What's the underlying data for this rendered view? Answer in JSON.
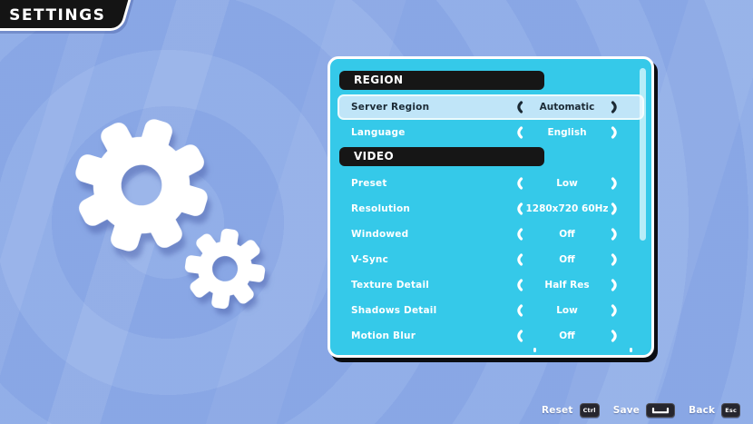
{
  "title": "SETTINGS",
  "colors": {
    "background": "#8caae7",
    "panel": "#35c9e9",
    "section_header_bg": "#161616",
    "selected_row_bg": "#c0e5f8",
    "selected_row_text": "#1b2a35",
    "row_text": "#ffffff",
    "banner_bg": "#141414",
    "key_badge_bg": "#26262e"
  },
  "icons": {
    "gear_big": "gear-icon",
    "gear_small": "small-gear-icon",
    "left_arrow": "left-arrow-icon (curved bracket ❨)",
    "right_arrow": "right-arrow-icon (curved bracket ❩)",
    "save_key": "spacebar-key-icon"
  },
  "panel": {
    "sections": [
      {
        "header": "REGION",
        "rows": [
          {
            "label": "Server Region",
            "value": "Automatic",
            "selected": true
          },
          {
            "label": "Language",
            "value": "English",
            "selected": false
          }
        ]
      },
      {
        "header": "VIDEO",
        "rows": [
          {
            "label": "Preset",
            "value": "Low",
            "selected": false
          },
          {
            "label": "Resolution",
            "value": "1280x720 60Hz",
            "selected": false
          },
          {
            "label": "Windowed",
            "value": "Off",
            "selected": false
          },
          {
            "label": "V-Sync",
            "value": "Off",
            "selected": false
          },
          {
            "label": "Texture Detail",
            "value": "Half Res",
            "selected": false
          },
          {
            "label": "Shadows Detail",
            "value": "Low",
            "selected": false
          },
          {
            "label": "Motion Blur",
            "value": "Off",
            "selected": false
          }
        ]
      }
    ]
  },
  "footer": {
    "buttons": [
      {
        "label": "Reset",
        "key": "Ctrl"
      },
      {
        "label": "Save",
        "key": ""
      },
      {
        "label": "Back",
        "key": "Esc"
      }
    ]
  }
}
